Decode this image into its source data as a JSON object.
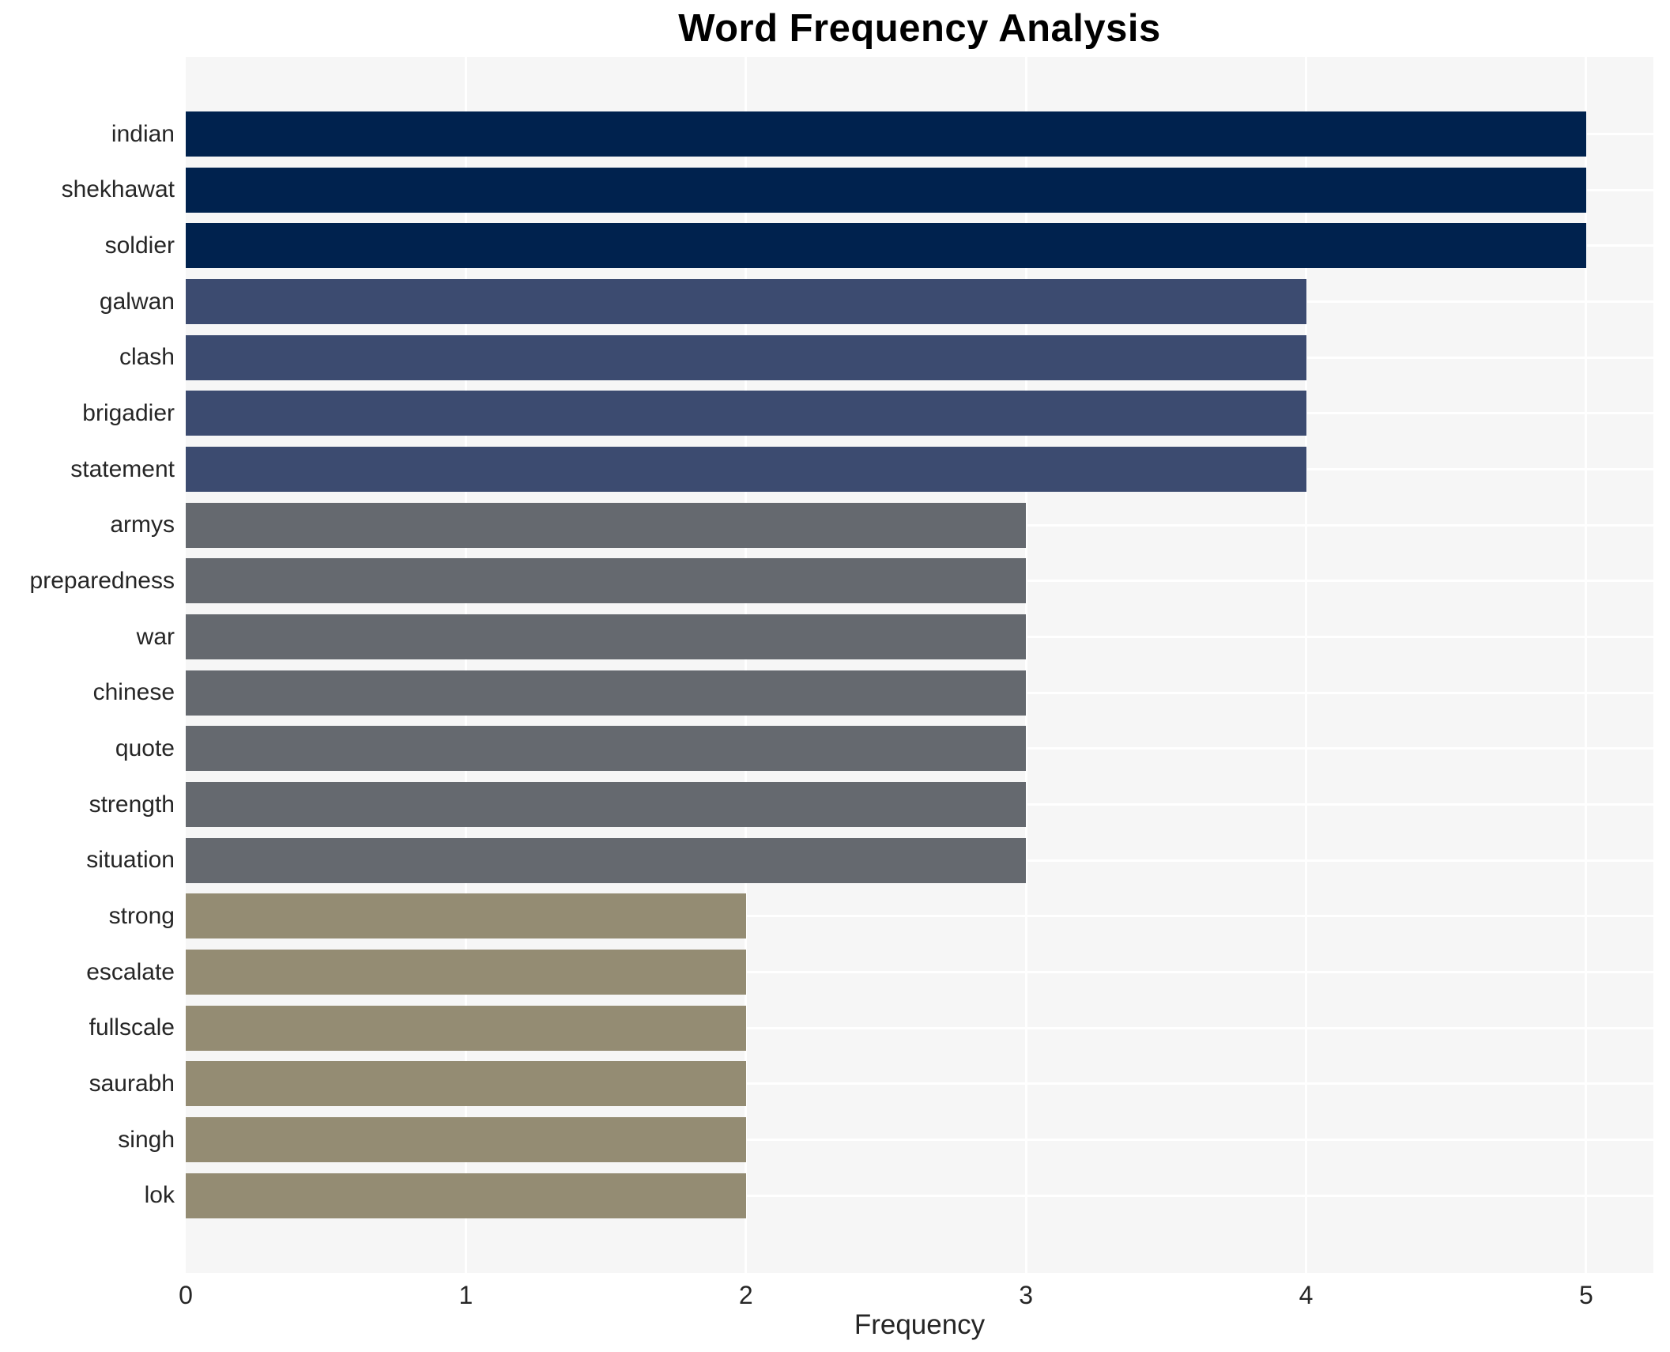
{
  "title": "Word Frequency Analysis",
  "chart_data": {
    "type": "bar",
    "orientation": "horizontal",
    "title": "Word Frequency Analysis",
    "xlabel": "Frequency",
    "ylabel": "",
    "xlim": [
      0,
      5.24
    ],
    "x_ticks": [
      0,
      1,
      2,
      3,
      4,
      5
    ],
    "grid": true,
    "legend": "none",
    "categories": [
      "indian",
      "shekhawat",
      "soldier",
      "galwan",
      "clash",
      "brigadier",
      "statement",
      "armys",
      "preparedness",
      "war",
      "chinese",
      "quote",
      "strength",
      "situation",
      "strong",
      "escalate",
      "fullscale",
      "saurabh",
      "singh",
      "lok"
    ],
    "values": [
      5,
      5,
      5,
      4,
      4,
      4,
      4,
      3,
      3,
      3,
      3,
      3,
      3,
      3,
      2,
      2,
      2,
      2,
      2,
      2
    ],
    "color_by_value": {
      "5": "#00224e",
      "4": "#3c4b70",
      "3": "#65696f",
      "2": "#948c73"
    },
    "plot_bg_color": "#f6f6f6",
    "grid_color": "#ffffff",
    "text_color": "#262626",
    "title_color": "#000000"
  }
}
